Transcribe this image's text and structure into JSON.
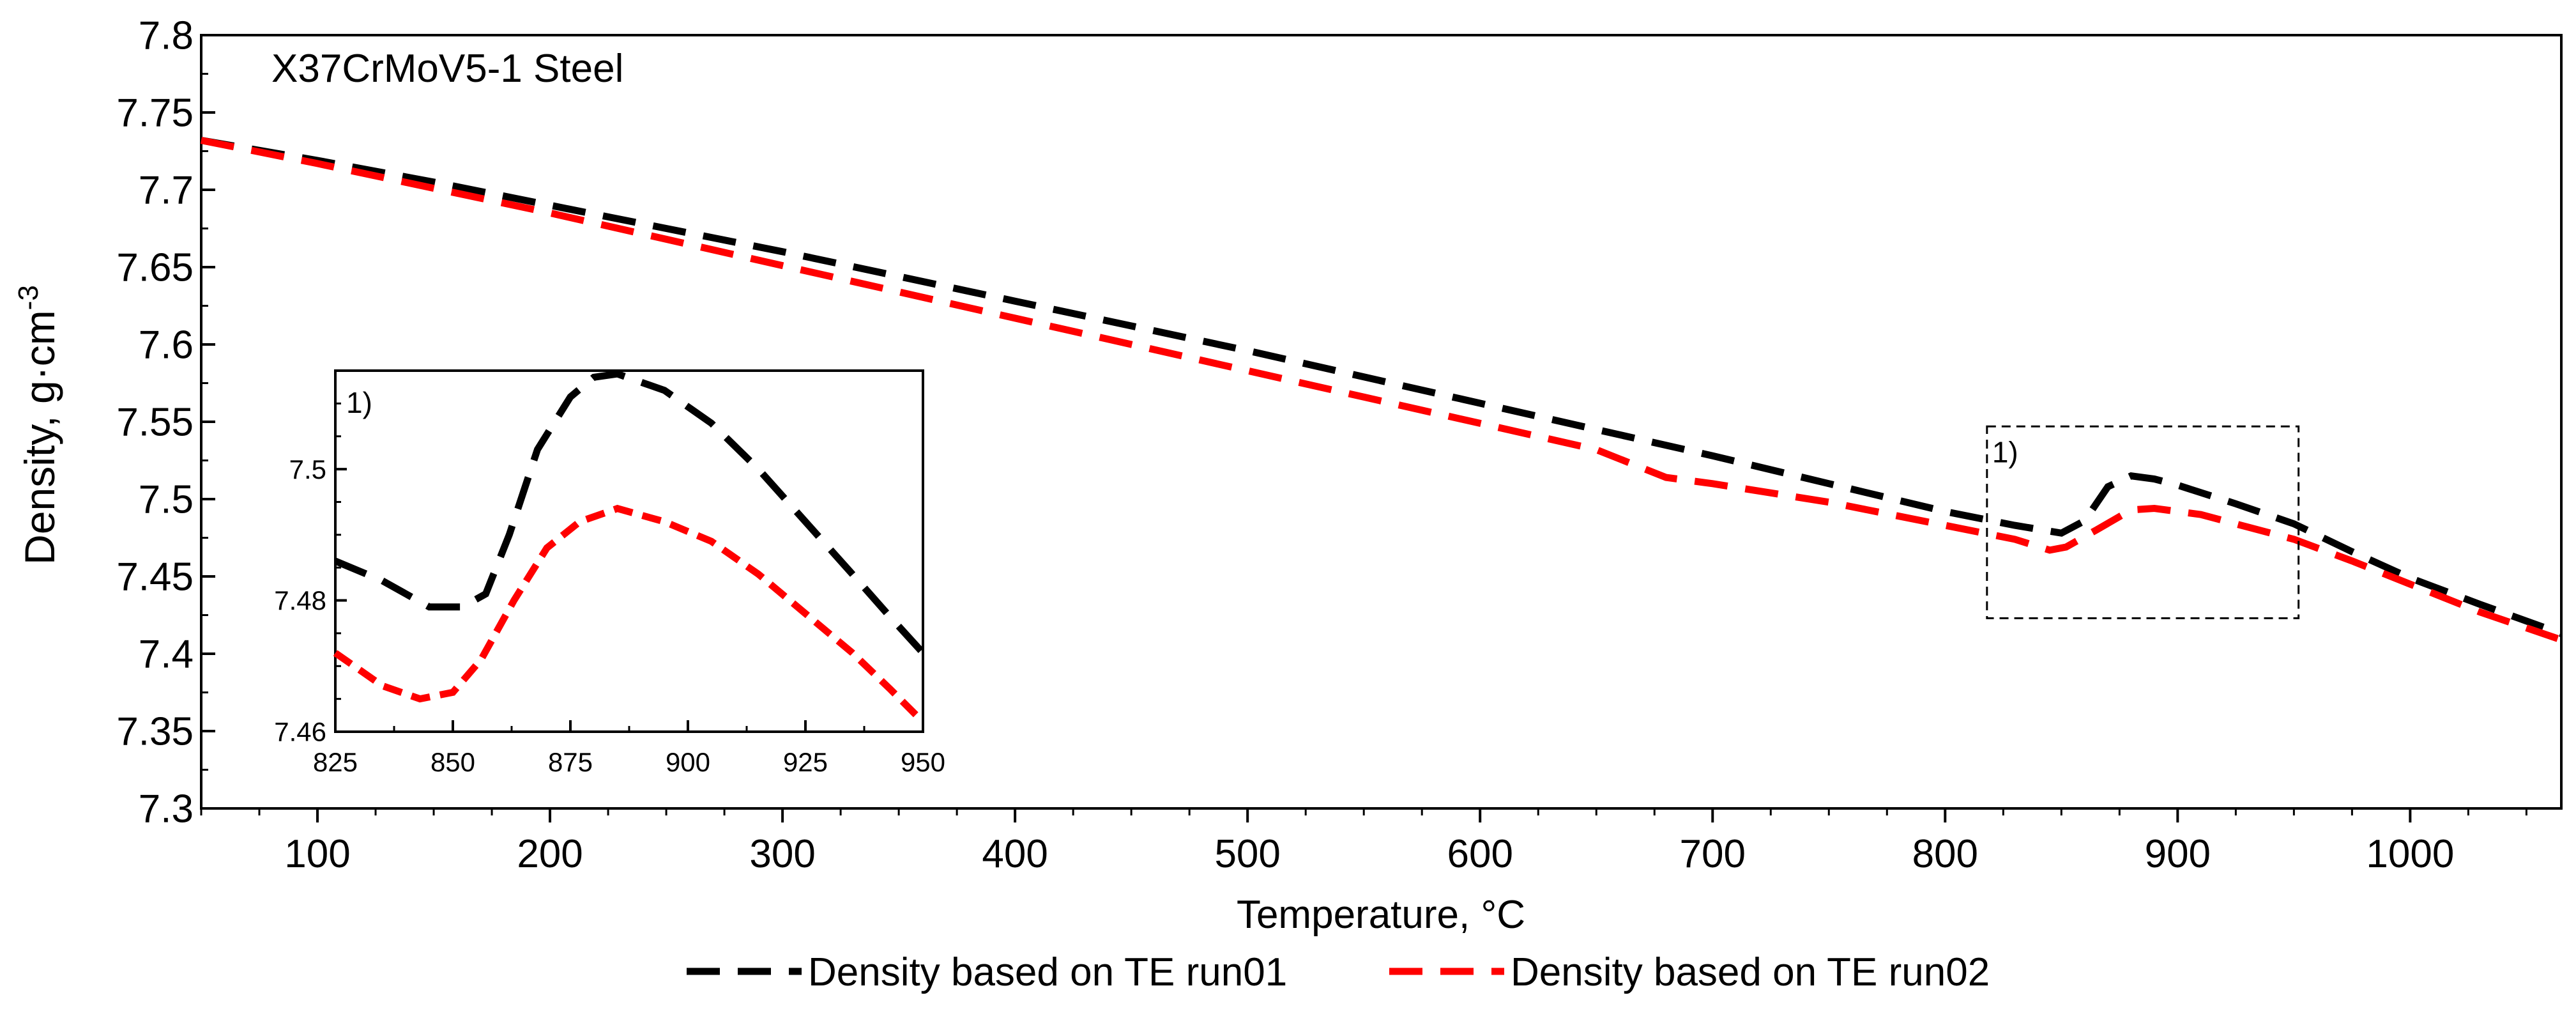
{
  "chart_data": [
    {
      "id": "main",
      "type": "line",
      "title": "X37CrMoV5-1 Steel",
      "xlabel": "Temperature, °C",
      "ylabel": "Density, g·cm",
      "ylabel_exp": "-3",
      "xlim": [
        50,
        1065
      ],
      "ylim": [
        7.3,
        7.8
      ],
      "xticks": [
        100,
        200,
        300,
        400,
        500,
        600,
        700,
        800,
        900,
        1000
      ],
      "yticks": [
        7.3,
        7.35,
        7.4,
        7.45,
        7.5,
        7.55,
        7.6,
        7.65,
        7.7,
        7.75,
        7.8
      ],
      "ytick_labels": [
        "7.3",
        "7.35",
        "7.4",
        "7.45",
        "7.5",
        "7.55",
        "7.6",
        "7.65",
        "7.7",
        "7.75",
        "7.8"
      ],
      "legend_position": "bottom-center",
      "zoom_box": {
        "label": "1)",
        "x_range": [
          818,
          952
        ],
        "y_range": [
          7.423,
          7.547
        ]
      },
      "series": [
        {
          "name": "Density based on TE run01",
          "color": "#000000",
          "points": [
            [
              50,
              7.732
            ],
            [
              100,
              7.719
            ],
            [
              150,
              7.705
            ],
            [
              200,
              7.69
            ],
            [
              250,
              7.675
            ],
            [
              300,
              7.66
            ],
            [
              350,
              7.644
            ],
            [
              400,
              7.628
            ],
            [
              450,
              7.612
            ],
            [
              500,
              7.596
            ],
            [
              550,
              7.579
            ],
            [
              600,
              7.562
            ],
            [
              650,
              7.545
            ],
            [
              700,
              7.528
            ],
            [
              750,
              7.51
            ],
            [
              800,
              7.492
            ],
            [
              830,
              7.483
            ],
            [
              850,
              7.478
            ],
            [
              860,
              7.486
            ],
            [
              870,
              7.508
            ],
            [
              880,
              7.515
            ],
            [
              890,
              7.513
            ],
            [
              900,
              7.509
            ],
            [
              925,
              7.497
            ],
            [
              950,
              7.484
            ],
            [
              975,
              7.466
            ],
            [
              1000,
              7.449
            ],
            [
              1030,
              7.432
            ],
            [
              1065,
              7.413
            ]
          ]
        },
        {
          "name": "Density based on TE run02",
          "color": "#ff0000",
          "points": [
            [
              50,
              7.732
            ],
            [
              100,
              7.717
            ],
            [
              150,
              7.701
            ],
            [
              200,
              7.685
            ],
            [
              250,
              7.668
            ],
            [
              300,
              7.651
            ],
            [
              350,
              7.634
            ],
            [
              400,
              7.617
            ],
            [
              450,
              7.6
            ],
            [
              500,
              7.583
            ],
            [
              550,
              7.566
            ],
            [
              600,
              7.549
            ],
            [
              650,
              7.532
            ],
            [
              680,
              7.514
            ],
            [
              700,
              7.51
            ],
            [
              750,
              7.498
            ],
            [
              800,
              7.483
            ],
            [
              830,
              7.474
            ],
            [
              845,
              7.467
            ],
            [
              852,
              7.469
            ],
            [
              865,
              7.48
            ],
            [
              880,
              7.493
            ],
            [
              890,
              7.494
            ],
            [
              910,
              7.49
            ],
            [
              930,
              7.482
            ],
            [
              950,
              7.474
            ],
            [
              975,
              7.46
            ],
            [
              1000,
              7.445
            ],
            [
              1030,
              7.427
            ],
            [
              1065,
              7.409
            ]
          ]
        }
      ]
    },
    {
      "id": "inset",
      "type": "line",
      "label": "1)",
      "xlim": [
        825,
        950
      ],
      "ylim": [
        7.46,
        7.515
      ],
      "xticks": [
        825,
        850,
        875,
        900,
        925,
        950
      ],
      "yticks": [
        7.46,
        7.48,
        7.5
      ],
      "ytick_labels": [
        "7.46",
        "7.48",
        "7.5"
      ],
      "series": [
        {
          "name": "Density based on TE run01",
          "color": "#000000",
          "points": [
            [
              825,
              7.486
            ],
            [
              835,
              7.483
            ],
            [
              845,
              7.479
            ],
            [
              852,
              7.479
            ],
            [
              857,
              7.481
            ],
            [
              862,
              7.49
            ],
            [
              868,
              7.503
            ],
            [
              875,
              7.511
            ],
            [
              880,
              7.514
            ],
            [
              885,
              7.5145
            ],
            [
              895,
              7.512
            ],
            [
              905,
              7.507
            ],
            [
              915,
              7.5
            ],
            [
              925,
              7.492
            ],
            [
              935,
              7.484
            ],
            [
              943,
              7.4775
            ],
            [
              950,
              7.472
            ]
          ]
        },
        {
          "name": "Density based on TE run02",
          "color": "#ff0000",
          "points": [
            [
              825,
              7.472
            ],
            [
              835,
              7.467
            ],
            [
              843,
              7.465
            ],
            [
              850,
              7.466
            ],
            [
              856,
              7.471
            ],
            [
              863,
              7.48
            ],
            [
              870,
              7.488
            ],
            [
              877,
              7.492
            ],
            [
              885,
              7.494
            ],
            [
              895,
              7.492
            ],
            [
              905,
              7.489
            ],
            [
              915,
              7.484
            ],
            [
              925,
              7.478
            ],
            [
              935,
              7.472
            ],
            [
              943,
              7.4665
            ],
            [
              950,
              7.4615
            ]
          ]
        }
      ]
    }
  ]
}
